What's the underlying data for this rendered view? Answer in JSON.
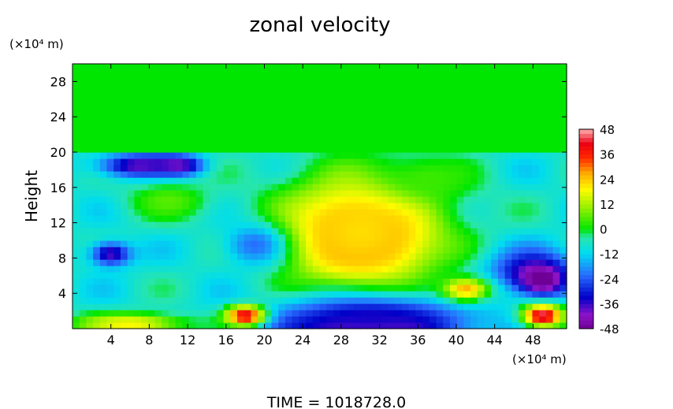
{
  "chart_data": {
    "type": "heatmap",
    "title": "zonal velocity",
    "ylabel": "Height",
    "y_unit": "(×10⁴ m)",
    "x_unit": "(×10⁴ m)",
    "footer": "TIME = 1018728.0",
    "xlim": [
      0,
      51.5
    ],
    "ylim": [
      0,
      30
    ],
    "x_ticks": [
      "4",
      "8",
      "12",
      "16",
      "20",
      "24",
      "28",
      "32",
      "36",
      "40",
      "44",
      "48"
    ],
    "y_ticks": [
      "4",
      "8",
      "12",
      "16",
      "20",
      "24",
      "28"
    ],
    "colorbar": {
      "range": [
        -48,
        48
      ],
      "ticks": [
        "48",
        "36",
        "24",
        "12",
        "0",
        "-12",
        "-24",
        "-36",
        "-48"
      ]
    },
    "field": {
      "top_layer_value": 0,
      "top_layer_from_height": 20,
      "background_value": -8,
      "features": [
        {
          "x": 30,
          "y": 10,
          "rx": 5,
          "ry": 3.5,
          "value": 52
        },
        {
          "x": 30,
          "y": 11,
          "rx": 8,
          "ry": 5.5,
          "value": 36
        },
        {
          "x": 30,
          "y": 11,
          "rx": 10,
          "ry": 8,
          "value": 22
        },
        {
          "x": 31,
          "y": 0,
          "rx": 9,
          "ry": 2.2,
          "value": -55
        },
        {
          "x": 31,
          "y": 1.2,
          "rx": 12,
          "ry": 3.2,
          "value": -34
        },
        {
          "x": 7,
          "y": 18.5,
          "rx": 5,
          "ry": 1.6,
          "value": -40
        },
        {
          "x": 11,
          "y": 18.5,
          "rx": 3,
          "ry": 1.3,
          "value": -42
        },
        {
          "x": 4,
          "y": 8.5,
          "rx": 2.5,
          "ry": 1.6,
          "value": -38
        },
        {
          "x": 19,
          "y": 9.5,
          "rx": 4,
          "ry": 3,
          "value": -22
        },
        {
          "x": 48,
          "y": 6.5,
          "rx": 5,
          "ry": 3,
          "value": -38
        },
        {
          "x": 49,
          "y": 5.5,
          "rx": 2.5,
          "ry": 1.8,
          "value": -52
        },
        {
          "x": 49,
          "y": 1.5,
          "rx": 2.5,
          "ry": 1.5,
          "value": 46
        },
        {
          "x": 18,
          "y": 1.5,
          "rx": 2.5,
          "ry": 1.4,
          "value": 42
        },
        {
          "x": 6,
          "y": 0.6,
          "rx": 7,
          "ry": 1.4,
          "value": 20
        },
        {
          "x": 10,
          "y": 14.5,
          "rx": 5,
          "ry": 2.5,
          "value": 6
        },
        {
          "x": 37,
          "y": 17,
          "rx": 6,
          "ry": 3,
          "value": 4
        },
        {
          "x": 41,
          "y": 4.5,
          "rx": 3,
          "ry": 1.6,
          "value": 26
        }
      ]
    }
  }
}
